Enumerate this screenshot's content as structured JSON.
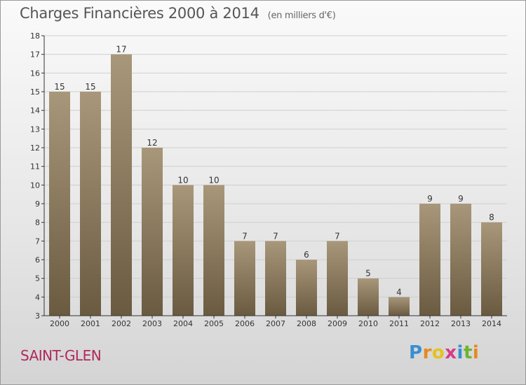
{
  "title": "Charges Financières 2000 à 2014",
  "unit_note": "(en milliers d'€)",
  "place": "SAINT-GLEN",
  "brand": {
    "letters": [
      "P",
      "r",
      "o",
      "x",
      "i",
      "t",
      "i"
    ],
    "colors": [
      "#3a8fd0",
      "#e58a1f",
      "#e5c21f",
      "#d93a8a",
      "#3a8fd0",
      "#6cb52d",
      "#e58a1f"
    ]
  },
  "colors": {
    "bar_top": "#a8977a",
    "bar_bottom": "#6a5a40",
    "axis": "#333333",
    "grid": "#cfcfcf"
  },
  "chart_data": {
    "type": "bar",
    "title": "Charges Financières 2000 à 2014",
    "categories": [
      "2000",
      "2001",
      "2002",
      "2003",
      "2004",
      "2005",
      "2006",
      "2007",
      "2008",
      "2009",
      "2010",
      "2011",
      "2012",
      "2013",
      "2014"
    ],
    "values": [
      15,
      15,
      17,
      12,
      10,
      10,
      7,
      7,
      6,
      7,
      5,
      4,
      9,
      9,
      8
    ],
    "ylim": [
      3,
      18
    ],
    "yticks": [
      3,
      4,
      5,
      6,
      7,
      8,
      9,
      10,
      11,
      12,
      13,
      14,
      15,
      16,
      17,
      18
    ],
    "xlabel": "",
    "ylabel": "",
    "grid": true,
    "data_labels": true
  }
}
